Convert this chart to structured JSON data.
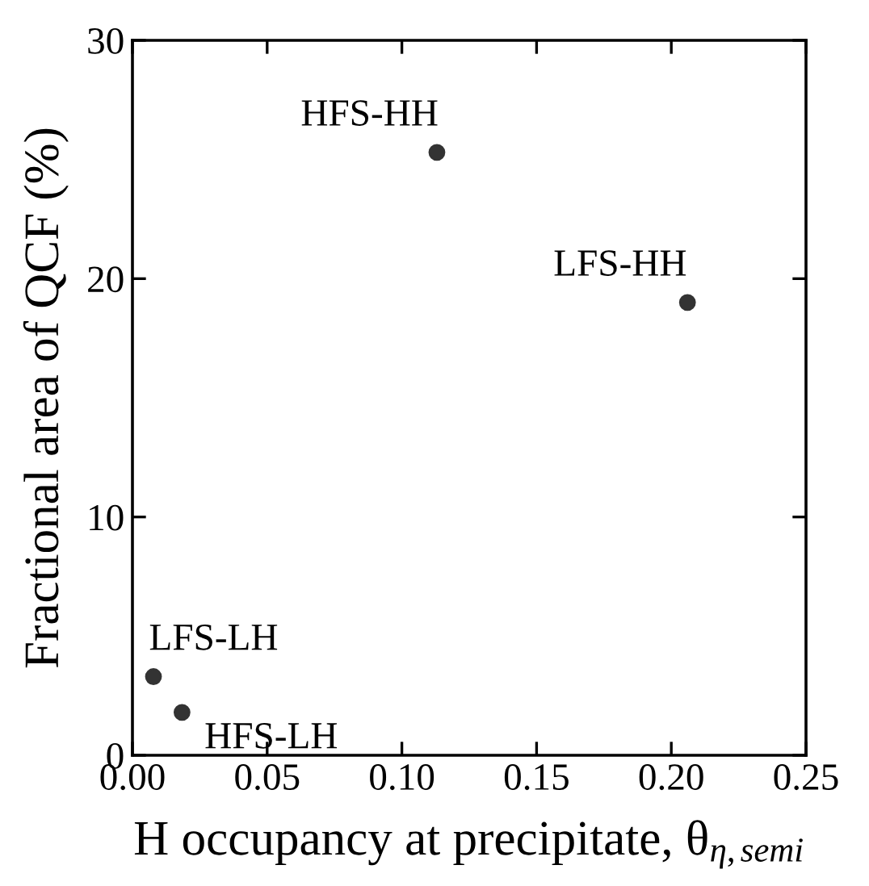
{
  "chart_data": {
    "type": "scatter",
    "xlabel": "H occupancy at precipitate, θ$_{η,semi}$",
    "ylabel": "Fractional area of QCF (%)",
    "x": [
      0.0078,
      0.0184,
      0.113,
      0.206
    ],
    "series": [
      {
        "color": "#333333",
        "values": [
          3.3,
          1.8,
          25.3,
          19.0
        ]
      }
    ],
    "marker": "circle",
    "grid": false,
    "legend": false,
    "xlim": [
      0,
      0.25
    ],
    "ylim": [
      0,
      30
    ],
    "xticks": [
      {
        "value": 0,
        "label": "0.00"
      },
      0.05,
      {
        "value": 0.1,
        "label": "0.10"
      },
      0.15,
      {
        "value": 0.2,
        "label": "0.20"
      },
      0.25
    ],
    "yticks": [
      0,
      10,
      20,
      30
    ],
    "annotations": [
      {
        "text": "LFS-LH",
        "x": 0.0078,
        "y": 3.3
      },
      {
        "text": "HFS-LH",
        "x": 0.0184,
        "y": 1.8
      },
      {
        "text": "HFS-HH",
        "x": 0.113,
        "y": 25.3
      },
      {
        "text": "LFS-HH",
        "x": 0.206,
        "y": 19.0
      }
    ]
  }
}
